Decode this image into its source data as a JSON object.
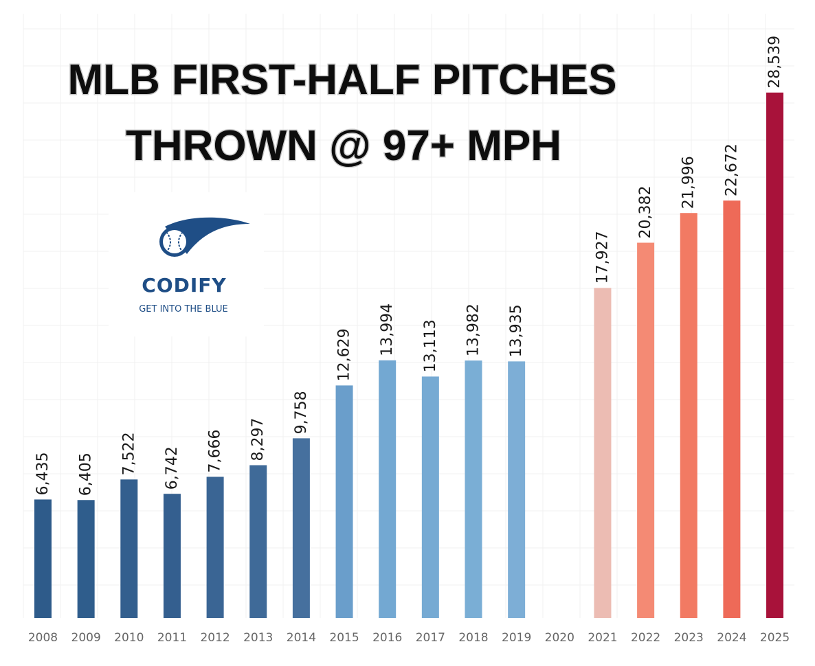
{
  "chart_data": {
    "type": "bar",
    "title_lines": [
      "MLB FIRST-HALF PITCHES",
      "THROWN @ 97+ MPH"
    ],
    "xlabel": "",
    "ylabel": "",
    "ylim": [
      0,
      32000
    ],
    "grid": true,
    "categories": [
      "2008",
      "2009",
      "2010",
      "2011",
      "2012",
      "2013",
      "2014",
      "2015",
      "2016",
      "2017",
      "2018",
      "2019",
      "2020",
      "2021",
      "2022",
      "2023",
      "2024",
      "2025"
    ],
    "values": [
      6435,
      6405,
      7522,
      6742,
      7666,
      8297,
      9758,
      12629,
      13994,
      13113,
      13982,
      13935,
      null,
      17927,
      20382,
      21996,
      22672,
      28539
    ],
    "labels": [
      "6,435",
      "6,405",
      "7,522",
      "6,742",
      "7,666",
      "8,297",
      "9,758",
      "12,629",
      "13,994",
      "13,113",
      "13,982",
      "13,935",
      "",
      "17,927",
      "20,382",
      "21,996",
      "22,672",
      "28,539"
    ],
    "colors": [
      "#2e5b8a",
      "#2f5d8c",
      "#335f8e",
      "#345f8f",
      "#3a6594",
      "#3f6a98",
      "#46709e",
      "#6a9ecb",
      "#73a8d2",
      "#76aad3",
      "#7aaed5",
      "#7daed6",
      "",
      "#ecbcb3",
      "#f48a74",
      "#f27a63",
      "#ee6a58",
      "#a8123a"
    ],
    "brand": {
      "name": "CODIFY",
      "tagline": "GET INTO THE BLUE",
      "logo_icon": "baseball-comet-icon"
    }
  }
}
